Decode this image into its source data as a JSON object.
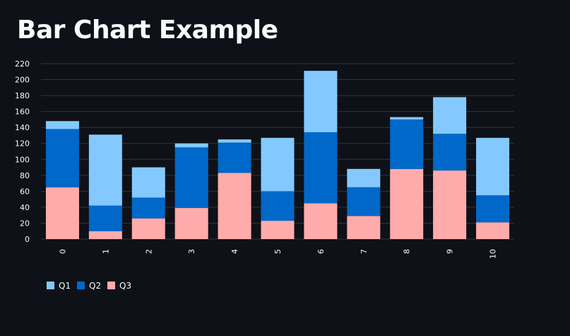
{
  "page": {
    "title": "Bar Chart Example"
  },
  "chart_data": {
    "type": "bar",
    "stacked": true,
    "categories": [
      "0",
      "1",
      "2",
      "3",
      "4",
      "5",
      "6",
      "7",
      "8",
      "9",
      "10"
    ],
    "series": [
      {
        "name": "Q3",
        "color": "#ffabab",
        "values": [
          65,
          10,
          26,
          39,
          83,
          23,
          45,
          29,
          88,
          86,
          21
        ]
      },
      {
        "name": "Q2",
        "color": "#0068c9",
        "values": [
          73,
          32,
          26,
          76,
          38,
          37,
          89,
          36,
          62,
          46,
          34
        ]
      },
      {
        "name": "Q1",
        "color": "#83c9ff",
        "values": [
          10,
          89,
          38,
          5,
          4,
          67,
          77,
          23,
          3,
          46,
          72
        ]
      }
    ],
    "legend": [
      {
        "name": "Q1",
        "color": "#83c9ff"
      },
      {
        "name": "Q2",
        "color": "#0068c9"
      },
      {
        "name": "Q3",
        "color": "#ffabab"
      }
    ],
    "yticks": [
      0,
      20,
      40,
      60,
      80,
      100,
      120,
      140,
      160,
      180,
      200,
      220
    ],
    "ylim": [
      0,
      220
    ],
    "grid": true,
    "legend_position": "bottom-left",
    "xlabel": "",
    "ylabel": ""
  }
}
